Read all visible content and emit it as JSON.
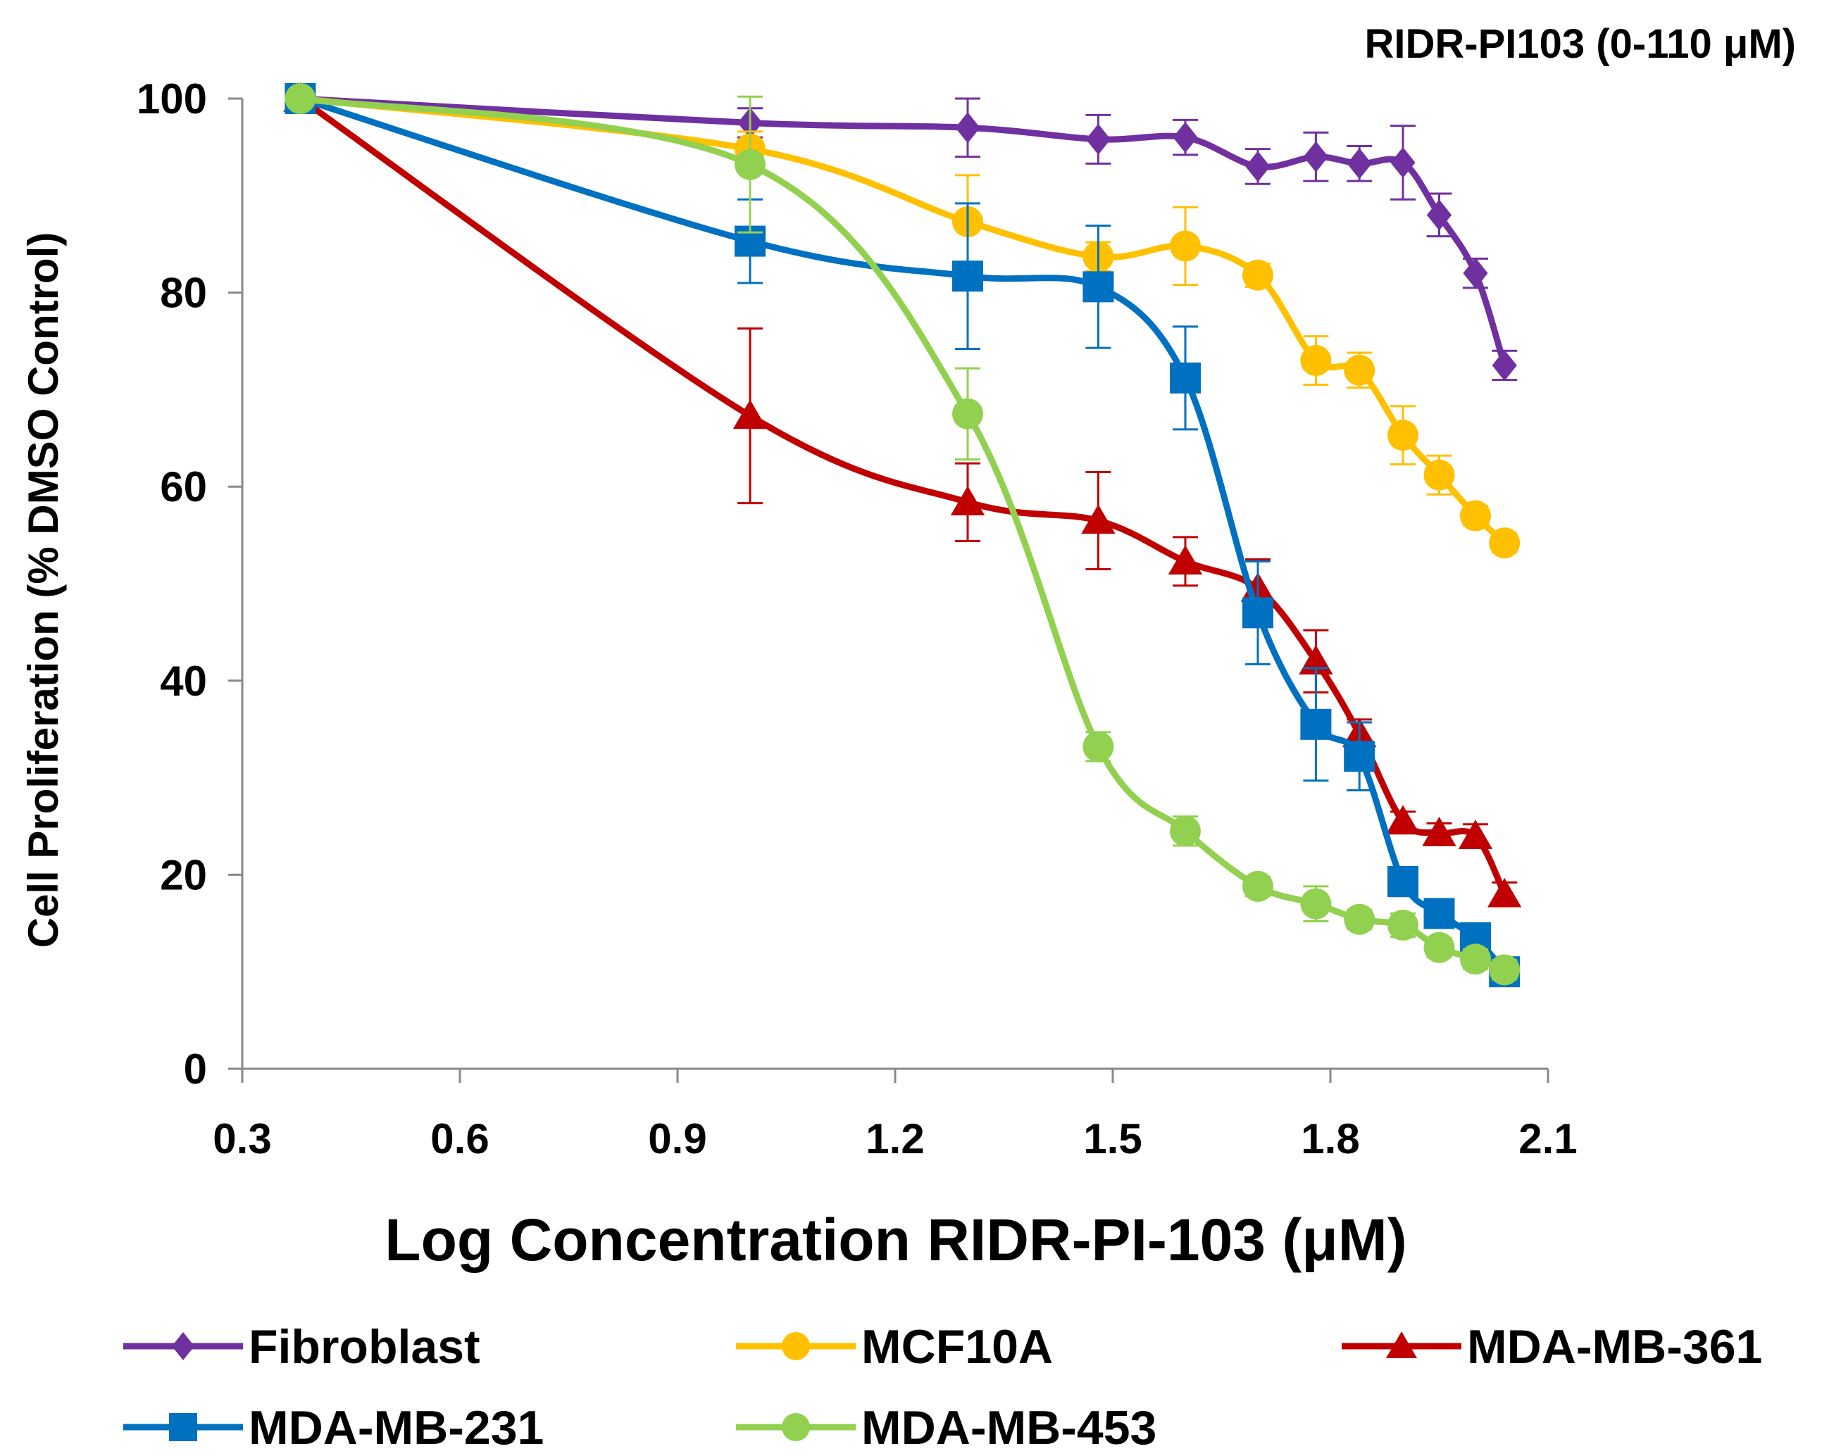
{
  "chart_data": {
    "type": "line",
    "title": "RIDR-PI103 (0-110 μM)",
    "xlabel": "Log Concentration RIDR-PI-103 (μM)",
    "ylabel": "Cell Proliferation (% DMSO Control)",
    "xlim": [
      0.3,
      2.1
    ],
    "ylim": [
      0,
      100
    ],
    "xticks": [
      "0.3",
      "0.6",
      "0.9",
      "1.2",
      "1.5",
      "1.8",
      "2.1"
    ],
    "yticks": [
      "0",
      "20",
      "40",
      "60",
      "80",
      "100"
    ],
    "legend_position": "bottom",
    "series": [
      {
        "name": "Fibroblast",
        "color": "#7030a0",
        "marker": "diamond",
        "x": [
          0.38,
          1.0,
          1.3,
          1.48,
          1.6,
          1.7,
          1.78,
          1.84,
          1.9,
          1.95,
          2.0,
          2.04
        ],
        "y": [
          100,
          97.5,
          97,
          95.8,
          96,
          93,
          94,
          93.3,
          93.4,
          88,
          82,
          72.5
        ],
        "err": [
          0.5,
          1.5,
          3,
          2.5,
          1.8,
          1.8,
          2.5,
          1.8,
          3.8,
          2.2,
          1.5,
          1.5
        ]
      },
      {
        "name": "MCF10A",
        "color": "#ffc000",
        "marker": "circle",
        "x": [
          0.38,
          1.0,
          1.3,
          1.48,
          1.6,
          1.7,
          1.78,
          1.84,
          1.9,
          1.95,
          2.0,
          2.04
        ],
        "y": [
          100,
          94.8,
          87.3,
          83.7,
          84.8,
          81.8,
          73,
          72,
          65.3,
          61.2,
          57,
          54.2
        ],
        "err": [
          0.5,
          1.8,
          4.8,
          1.5,
          4,
          1.2,
          2.5,
          1.8,
          3,
          2,
          1,
          1
        ]
      },
      {
        "name": "MDA-MB-361",
        "color": "#c00000",
        "marker": "triangle",
        "x": [
          0.38,
          1.0,
          1.3,
          1.48,
          1.6,
          1.7,
          1.78,
          1.84,
          1.9,
          1.95,
          2.0,
          2.04
        ],
        "y": [
          100,
          67.3,
          58.4,
          56.5,
          52.3,
          49.5,
          42,
          34.5,
          25.5,
          24.3,
          24,
          18
        ],
        "err": [
          0.5,
          9,
          4,
          5,
          2.5,
          3,
          3.2,
          1.5,
          1,
          1,
          1.2,
          1.2
        ]
      },
      {
        "name": "MDA-MB-231",
        "color": "#0070c0",
        "marker": "square",
        "x": [
          0.38,
          1.0,
          1.3,
          1.48,
          1.6,
          1.7,
          1.78,
          1.84,
          1.9,
          1.95,
          2.0,
          2.04
        ],
        "y": [
          100,
          85.3,
          81.7,
          80.6,
          71.2,
          47,
          35.5,
          32.2,
          19.3,
          16,
          13.5,
          10
        ],
        "err": [
          0.5,
          4.3,
          7.5,
          6.3,
          5.3,
          5.3,
          5.8,
          3.5,
          1.5,
          1.2,
          1,
          1
        ]
      },
      {
        "name": "MDA-MB-453",
        "color": "#92d050",
        "marker": "circle",
        "x": [
          0.38,
          1.0,
          1.3,
          1.48,
          1.6,
          1.7,
          1.78,
          1.84,
          1.9,
          1.95,
          2.0,
          2.04
        ],
        "y": [
          100,
          93.2,
          67.5,
          33.2,
          24.5,
          18.8,
          17,
          15.4,
          14.8,
          12.5,
          11.3,
          10.2
        ],
        "err": [
          0.5,
          7,
          4.7,
          1.5,
          1.5,
          1,
          1.8,
          1,
          1.2,
          1,
          1,
          1
        ]
      }
    ]
  }
}
